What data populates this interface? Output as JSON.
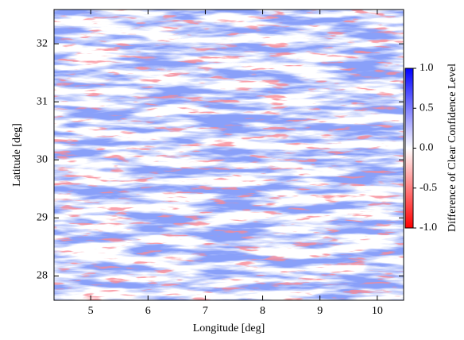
{
  "chart_data": {
    "type": "heatmap",
    "xlabel": "Longitude [deg]",
    "ylabel": "Latitude [deg]",
    "xlim": [
      4.36,
      10.46
    ],
    "ylim": [
      27.58,
      32.59
    ],
    "xticks": [
      5,
      6,
      7,
      8,
      9,
      10
    ],
    "yticks": [
      28,
      29,
      30,
      31,
      32
    ],
    "colorbar": {
      "label": "Difference of Clear Confidence Level",
      "lim": [
        -1,
        1
      ],
      "ticks": [
        {
          "value": -1,
          "label": "-1.0"
        },
        {
          "value": -0.5,
          "label": "-0.5"
        },
        {
          "value": 0,
          "label": "0.0"
        },
        {
          "value": 0.5,
          "label": "0.5"
        },
        {
          "value": 1,
          "label": "1.0"
        }
      ],
      "colormap": [
        "#ff0000",
        "#ffffff",
        "#0000ff"
      ]
    }
  }
}
